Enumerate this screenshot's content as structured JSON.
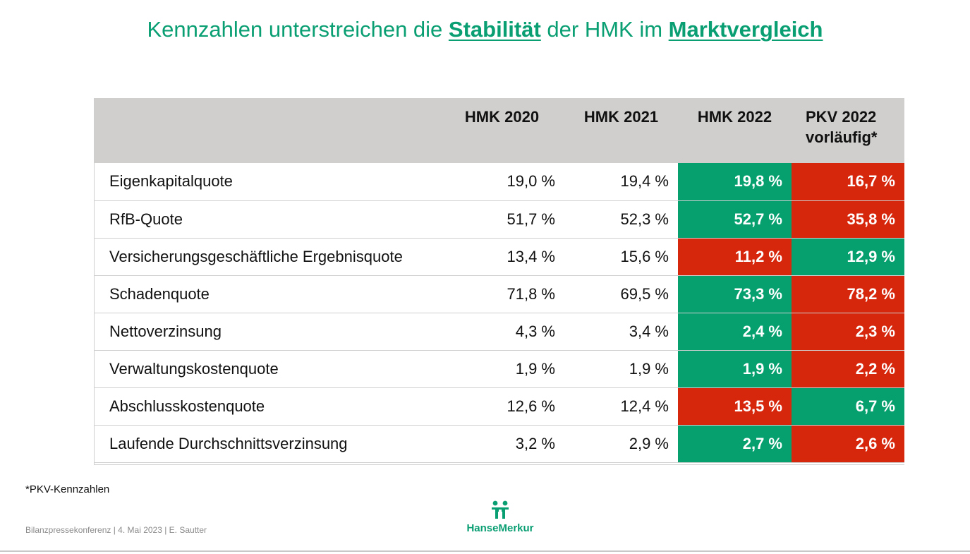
{
  "title": {
    "part1": "Kennzahlen unterstreichen die ",
    "em1": "Stabilität",
    "part2": " der HMK im ",
    "em2": "Marktvergleich"
  },
  "table": {
    "headers": {
      "label": "",
      "c2020": "HMK 2020",
      "c2021": "HMK 2021",
      "c2022": "HMK 2022",
      "pkv_line1": "PKV 2022",
      "pkv_line2": "vorläufig*"
    },
    "rows": [
      {
        "label": "Eigenkapitalquote",
        "v2020": "19,0 %",
        "v2021": "19,4 %",
        "v2022": "19,8 %",
        "pkv": "16,7 %",
        "hmk_color": "green",
        "pkv_color": "red"
      },
      {
        "label": "RfB-Quote",
        "v2020": "51,7 %",
        "v2021": "52,3 %",
        "v2022": "52,7 %",
        "pkv": "35,8 %",
        "hmk_color": "green",
        "pkv_color": "red"
      },
      {
        "label": "Versicherungsgeschäftliche Ergebnisquote",
        "v2020": "13,4 %",
        "v2021": "15,6 %",
        "v2022": "11,2 %",
        "pkv": "12,9 %",
        "hmk_color": "red",
        "pkv_color": "green"
      },
      {
        "label": "Schadenquote",
        "v2020": "71,8 %",
        "v2021": "69,5 %",
        "v2022": "73,3 %",
        "pkv": "78,2 %",
        "hmk_color": "green",
        "pkv_color": "red"
      },
      {
        "label": "Nettoverzinsung",
        "v2020": "4,3 %",
        "v2021": "3,4 %",
        "v2022": "2,4 %",
        "pkv": "2,3 %",
        "hmk_color": "green",
        "pkv_color": "red"
      },
      {
        "label": "Verwaltungskostenquote",
        "v2020": "1,9 %",
        "v2021": "1,9 %",
        "v2022": "1,9 %",
        "pkv": "2,2 %",
        "hmk_color": "green",
        "pkv_color": "red"
      },
      {
        "label": "Abschlusskostenquote",
        "v2020": "12,6 %",
        "v2021": "12,4 %",
        "v2022": "13,5 %",
        "pkv": "6,7 %",
        "hmk_color": "red",
        "pkv_color": "green"
      },
      {
        "label": "Laufende Durchschnittsverzinsung",
        "v2020": "3,2 %",
        "v2021": "2,9 %",
        "v2022": "2,7 %",
        "pkv": "2,6 %",
        "hmk_color": "green",
        "pkv_color": "red"
      }
    ]
  },
  "footnote": "*PKV-Kennzahlen",
  "footer": "Bilanzpressekonferenz | 4. Mai 2023 | E. Sautter",
  "logo": {
    "text": "HanseMerkur",
    "icon": "hansemerkur-logo-icon"
  },
  "colors": {
    "accent": "#0a9e73",
    "green": "#06a06f",
    "red": "#d6260c",
    "header_bg": "#d1cfcd"
  }
}
